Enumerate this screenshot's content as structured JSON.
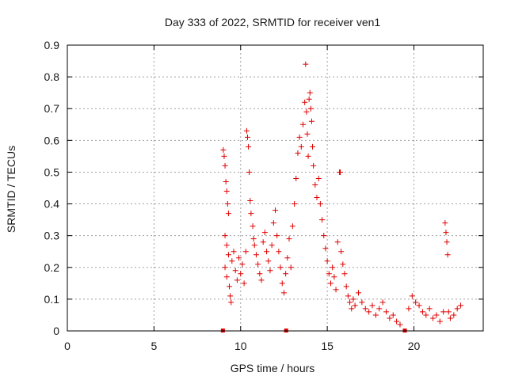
{
  "chart_data": {
    "type": "scatter",
    "title": "Day 333 of 2022, SRMTID for receiver ven1",
    "xlabel": "GPS time / hours",
    "ylabel": "SRMTID / TECUs",
    "xlim": [
      0,
      24
    ],
    "ylim": [
      0,
      0.9
    ],
    "xticks": [
      "0",
      "5",
      "10",
      "15",
      "20"
    ],
    "yticks": [
      "0",
      "0.1",
      "0.2",
      "0.3",
      "0.4",
      "0.5",
      "0.6",
      "0.7",
      "0.8",
      "0.9"
    ],
    "grid": true,
    "marker": "plus",
    "color": "#e00000",
    "series": [
      {
        "name": "ven1",
        "points": [
          [
            9.0,
            0.57
          ],
          [
            9.05,
            0.55
          ],
          [
            9.1,
            0.52
          ],
          [
            9.15,
            0.47
          ],
          [
            9.2,
            0.44
          ],
          [
            9.25,
            0.4
          ],
          [
            9.3,
            0.37
          ],
          [
            9.1,
            0.3
          ],
          [
            9.2,
            0.27
          ],
          [
            9.3,
            0.24
          ],
          [
            9.1,
            0.2
          ],
          [
            9.2,
            0.17
          ],
          [
            9.35,
            0.14
          ],
          [
            9.4,
            0.11
          ],
          [
            9.45,
            0.09
          ],
          [
            9.5,
            0.22
          ],
          [
            9.6,
            0.25
          ],
          [
            9.7,
            0.19
          ],
          [
            9.8,
            0.16
          ],
          [
            9.9,
            0.23
          ],
          [
            10.0,
            0.18
          ],
          [
            10.1,
            0.21
          ],
          [
            10.2,
            0.15
          ],
          [
            10.3,
            0.25
          ],
          [
            10.35,
            0.63
          ],
          [
            10.4,
            0.61
          ],
          [
            10.45,
            0.58
          ],
          [
            10.5,
            0.5
          ],
          [
            10.55,
            0.41
          ],
          [
            10.6,
            0.37
          ],
          [
            10.7,
            0.33
          ],
          [
            10.75,
            0.29
          ],
          [
            10.8,
            0.27
          ],
          [
            10.9,
            0.24
          ],
          [
            11.0,
            0.21
          ],
          [
            11.1,
            0.18
          ],
          [
            11.2,
            0.16
          ],
          [
            11.3,
            0.28
          ],
          [
            11.4,
            0.31
          ],
          [
            11.5,
            0.25
          ],
          [
            11.6,
            0.22
          ],
          [
            11.7,
            0.19
          ],
          [
            11.8,
            0.27
          ],
          [
            11.9,
            0.34
          ],
          [
            12.0,
            0.38
          ],
          [
            12.1,
            0.3
          ],
          [
            12.2,
            0.25
          ],
          [
            12.3,
            0.2
          ],
          [
            12.4,
            0.15
          ],
          [
            12.5,
            0.12
          ],
          [
            12.6,
            0.18
          ],
          [
            12.7,
            0.23
          ],
          [
            12.8,
            0.29
          ],
          [
            12.9,
            0.2
          ],
          [
            13.0,
            0.33
          ],
          [
            13.1,
            0.4
          ],
          [
            13.2,
            0.48
          ],
          [
            13.3,
            0.56
          ],
          [
            13.4,
            0.61
          ],
          [
            13.5,
            0.58
          ],
          [
            13.6,
            0.65
          ],
          [
            13.7,
            0.72
          ],
          [
            13.75,
            0.84
          ],
          [
            13.8,
            0.69
          ],
          [
            13.85,
            0.62
          ],
          [
            13.9,
            0.55
          ],
          [
            13.95,
            0.73
          ],
          [
            14.0,
            0.75
          ],
          [
            14.05,
            0.7
          ],
          [
            14.1,
            0.66
          ],
          [
            14.15,
            0.58
          ],
          [
            14.2,
            0.52
          ],
          [
            14.3,
            0.46
          ],
          [
            14.4,
            0.42
          ],
          [
            14.5,
            0.48
          ],
          [
            14.6,
            0.4
          ],
          [
            14.7,
            0.35
          ],
          [
            14.8,
            0.3
          ],
          [
            14.9,
            0.26
          ],
          [
            15.0,
            0.22
          ],
          [
            15.1,
            0.18
          ],
          [
            15.2,
            0.15
          ],
          [
            15.3,
            0.2
          ],
          [
            15.4,
            0.17
          ],
          [
            15.5,
            0.13
          ],
          [
            15.6,
            0.28
          ],
          [
            15.7,
            0.5
          ],
          [
            15.75,
            0.5
          ],
          [
            15.8,
            0.25
          ],
          [
            15.9,
            0.21
          ],
          [
            16.0,
            0.18
          ],
          [
            16.1,
            0.14
          ],
          [
            16.2,
            0.11
          ],
          [
            16.3,
            0.09
          ],
          [
            16.4,
            0.07
          ],
          [
            16.5,
            0.1
          ],
          [
            16.6,
            0.08
          ],
          [
            16.8,
            0.12
          ],
          [
            17.0,
            0.09
          ],
          [
            17.2,
            0.07
          ],
          [
            17.4,
            0.06
          ],
          [
            17.6,
            0.08
          ],
          [
            17.8,
            0.05
          ],
          [
            18.0,
            0.07
          ],
          [
            18.2,
            0.09
          ],
          [
            18.4,
            0.06
          ],
          [
            18.6,
            0.04
          ],
          [
            18.8,
            0.05
          ],
          [
            19.0,
            0.03
          ],
          [
            19.2,
            0.02
          ],
          [
            19.5,
            0.0
          ],
          [
            19.7,
            0.07
          ],
          [
            19.9,
            0.11
          ],
          [
            20.1,
            0.09
          ],
          [
            20.3,
            0.08
          ],
          [
            20.5,
            0.06
          ],
          [
            20.7,
            0.05
          ],
          [
            20.9,
            0.07
          ],
          [
            21.1,
            0.04
          ],
          [
            21.3,
            0.05
          ],
          [
            21.5,
            0.03
          ],
          [
            21.7,
            0.06
          ],
          [
            21.8,
            0.34
          ],
          [
            21.85,
            0.31
          ],
          [
            21.9,
            0.28
          ],
          [
            21.95,
            0.24
          ],
          [
            22.0,
            0.06
          ],
          [
            22.1,
            0.04
          ],
          [
            22.3,
            0.05
          ],
          [
            22.5,
            0.07
          ],
          [
            22.7,
            0.08
          ],
          [
            9.0,
            0.0
          ],
          [
            12.65,
            0.0
          ],
          [
            19.5,
            0.0
          ]
        ]
      }
    ]
  }
}
